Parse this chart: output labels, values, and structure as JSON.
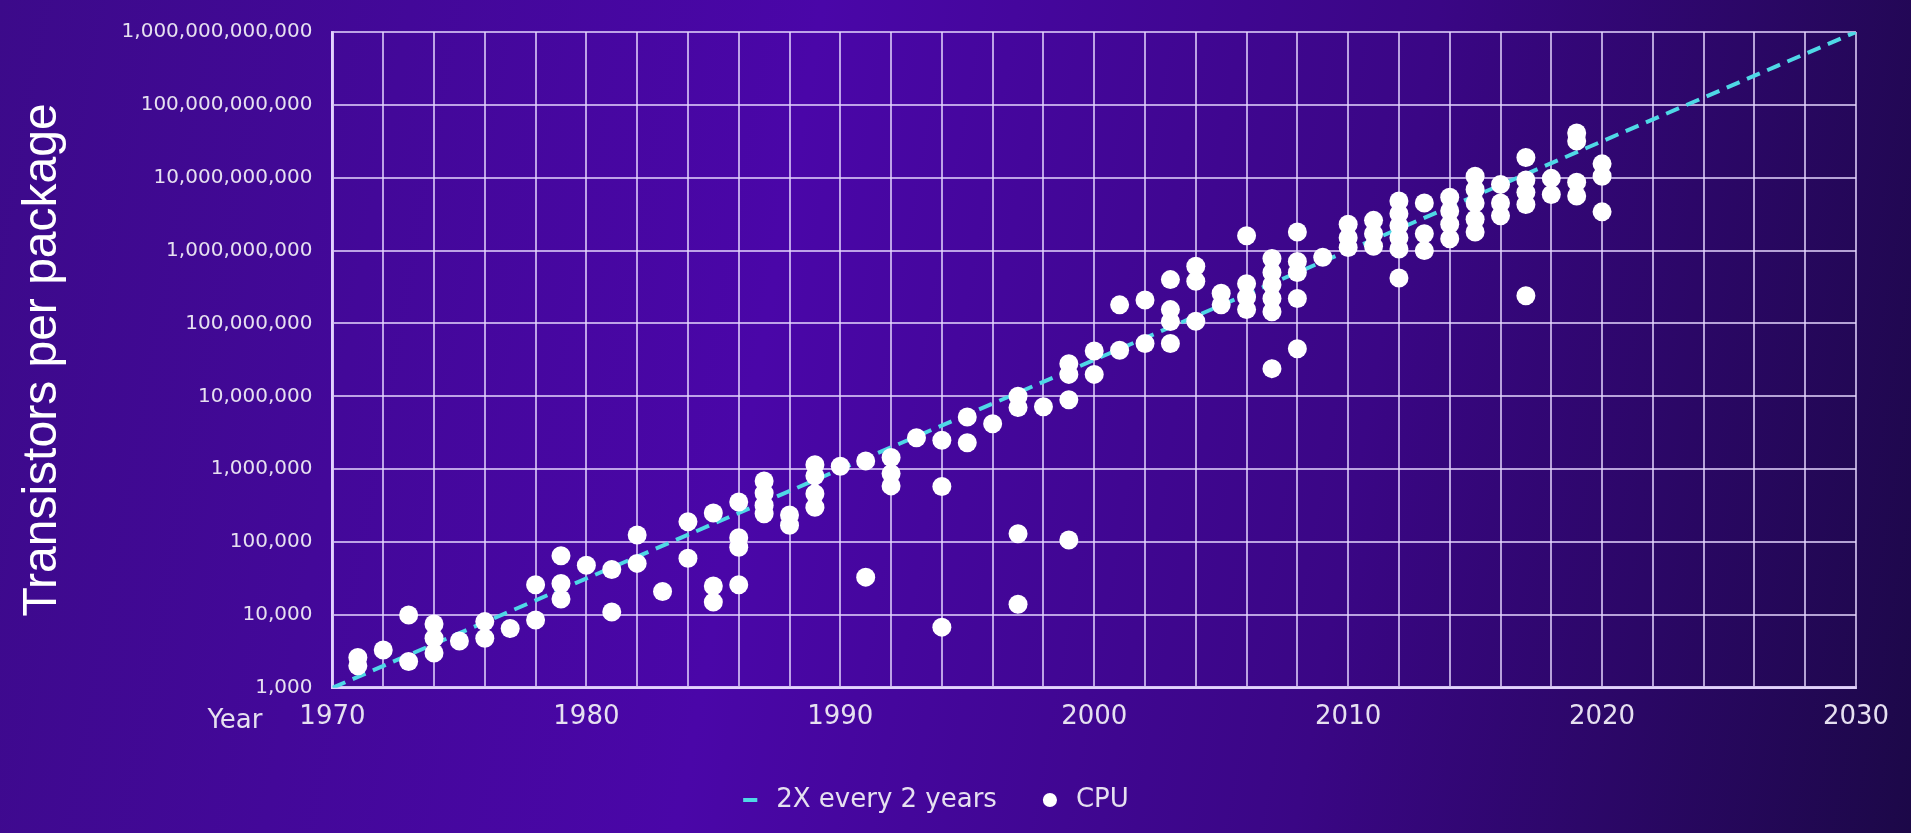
{
  "chart_data": {
    "type": "scatter",
    "xlabel": "Year",
    "ylabel": "Transistors per package",
    "log": "y",
    "grid": true,
    "legend": "bottom",
    "xlim": [
      1970,
      2030
    ],
    "ylim": [
      1000,
      1000000000000
    ],
    "xticks": [
      1970,
      {
        "value": 1972,
        "label": null
      },
      {
        "value": 1974,
        "label": null
      },
      {
        "value": 1976,
        "label": null
      },
      {
        "value": 1978,
        "label": null
      },
      1980,
      {
        "value": 1982,
        "label": null
      },
      {
        "value": 1984,
        "label": null
      },
      {
        "value": 1986,
        "label": null
      },
      {
        "value": 1988,
        "label": null
      },
      1990,
      {
        "value": 1992,
        "label": null
      },
      {
        "value": 1994,
        "label": null
      },
      {
        "value": 1996,
        "label": null
      },
      {
        "value": 1998,
        "label": null
      },
      2000,
      {
        "value": 2002,
        "label": null
      },
      {
        "value": 2004,
        "label": null
      },
      {
        "value": 2006,
        "label": null
      },
      {
        "value": 2008,
        "label": null
      },
      2010,
      {
        "value": 2012,
        "label": null
      },
      {
        "value": 2014,
        "label": null
      },
      {
        "value": 2016,
        "label": null
      },
      {
        "value": 2018,
        "label": null
      },
      2020,
      {
        "value": 2022,
        "label": null
      },
      {
        "value": 2024,
        "label": null
      },
      {
        "value": 2026,
        "label": null
      },
      {
        "value": 2028,
        "label": null
      },
      2030
    ],
    "yticks": [
      {
        "value": 1000,
        "label": "1,000"
      },
      {
        "value": 10000,
        "label": "10,000"
      },
      {
        "value": 100000,
        "label": "100,000"
      },
      {
        "value": 1000000,
        "label": "1,000,000"
      },
      {
        "value": 10000000,
        "label": "10,000,000"
      },
      {
        "value": 100000000,
        "label": "100,000,000"
      },
      {
        "value": 1000000000,
        "label": "1,000,000,000"
      },
      {
        "value": 10000000000,
        "label": "10,000,000,000"
      },
      {
        "value": 100000000000,
        "label": "100,000,000,000"
      },
      {
        "value": 1000000000000,
        "label": "1,000,000,000,000"
      }
    ],
    "series": [
      {
        "name": "2X every 2 years",
        "type": "line",
        "color": "#4fd8e6",
        "line_style": "dashed",
        "marker": "none",
        "x": [
          1970,
          2030
        ],
        "values": [
          1000,
          1000000000000
        ]
      },
      {
        "name": "CPU",
        "type": "scatter",
        "color": "#ffffff",
        "marker": "circle",
        "x": [
          1971,
          1971,
          1972,
          1973,
          1973,
          1974,
          1974,
          1974,
          1975,
          1976,
          1976,
          1977,
          1978,
          1978,
          1979,
          1979,
          1979,
          1980,
          1981,
          1981,
          1982,
          1982,
          1983,
          1984,
          1984,
          1985,
          1985,
          1985,
          1986,
          1986,
          1986,
          1986,
          1987,
          1987,
          1987,
          1987,
          1988,
          1988,
          1989,
          1989,
          1989,
          1989,
          1990,
          1991,
          1991,
          1992,
          1992,
          1992,
          1993,
          1994,
          1994,
          1994,
          1995,
          1995,
          1996,
          1997,
          1997,
          1997,
          1997,
          1998,
          1999,
          1999,
          1999,
          1999,
          2000,
          2000,
          2001,
          2001,
          2002,
          2002,
          2003,
          2003,
          2003,
          2003,
          2004,
          2004,
          2004,
          2005,
          2005,
          2006,
          2006,
          2006,
          2006,
          2007,
          2007,
          2007,
          2007,
          2007,
          2007,
          2008,
          2008,
          2008,
          2008,
          2008,
          2009,
          2010,
          2010,
          2010,
          2011,
          2011,
          2011,
          2012,
          2012,
          2012,
          2012,
          2012,
          2012,
          2013,
          2013,
          2013,
          2014,
          2014,
          2014,
          2014,
          2015,
          2015,
          2015,
          2015,
          2015,
          2016,
          2016,
          2016,
          2017,
          2017,
          2017,
          2017,
          2017,
          2018,
          2018,
          2019,
          2019,
          2019,
          2019,
          2020,
          2020,
          2020
        ],
        "values": [
          2600,
          2000,
          3300,
          10000,
          2300,
          7500,
          4800,
          3000,
          4400,
          8100,
          4800,
          6500,
          26000,
          8500,
          65000,
          27000,
          16500,
          48000,
          42000,
          11000,
          125000,
          51000,
          21000,
          190000,
          60000,
          250000,
          25000,
          15000,
          355000,
          115000,
          85000,
          26000,
          690000,
          470000,
          320000,
          245000,
          235000,
          170000,
          1150000,
          810000,
          460000,
          300000,
          1100000,
          1300000,
          33000,
          1450000,
          870000,
          590000,
          2700000,
          2500000,
          580000,
          6800,
          5200000,
          2300000,
          4200000,
          10000000,
          7000000,
          130000,
          14000,
          7200000,
          28000000,
          20000000,
          9000000,
          107000,
          42000000,
          20000000,
          180000000,
          43000000,
          210000000,
          53000000,
          400000000,
          155000000,
          106000000,
          53000000,
          610000000,
          380000000,
          107000000,
          260000000,
          180000000,
          1600000000,
          350000000,
          230000000,
          155000000,
          780000000,
          500000000,
          340000000,
          220000000,
          145000000,
          24000000,
          1800000000,
          710000000,
          500000000,
          220000000,
          45000000,
          810000000,
          2300000000,
          1500000000,
          1100000000,
          2600000000,
          1700000000,
          1150000000,
          4800000000,
          3200000000,
          2200000000,
          1500000000,
          1050000000,
          420000000,
          4500000000,
          1700000000,
          1000000000,
          5400000000,
          3500000000,
          2300000000,
          1450000000,
          10500000000,
          6900000000,
          4500000000,
          2700000000,
          1800000000,
          8100000000,
          4500000000,
          3000000000,
          19000000000,
          9300000000,
          6300000000,
          4300000000,
          240000000,
          9800000000,
          5900000000,
          41000000000,
          32000000000,
          8700000000,
          5600000000,
          15500000000,
          10500000000,
          3400000000
        ]
      }
    ]
  }
}
